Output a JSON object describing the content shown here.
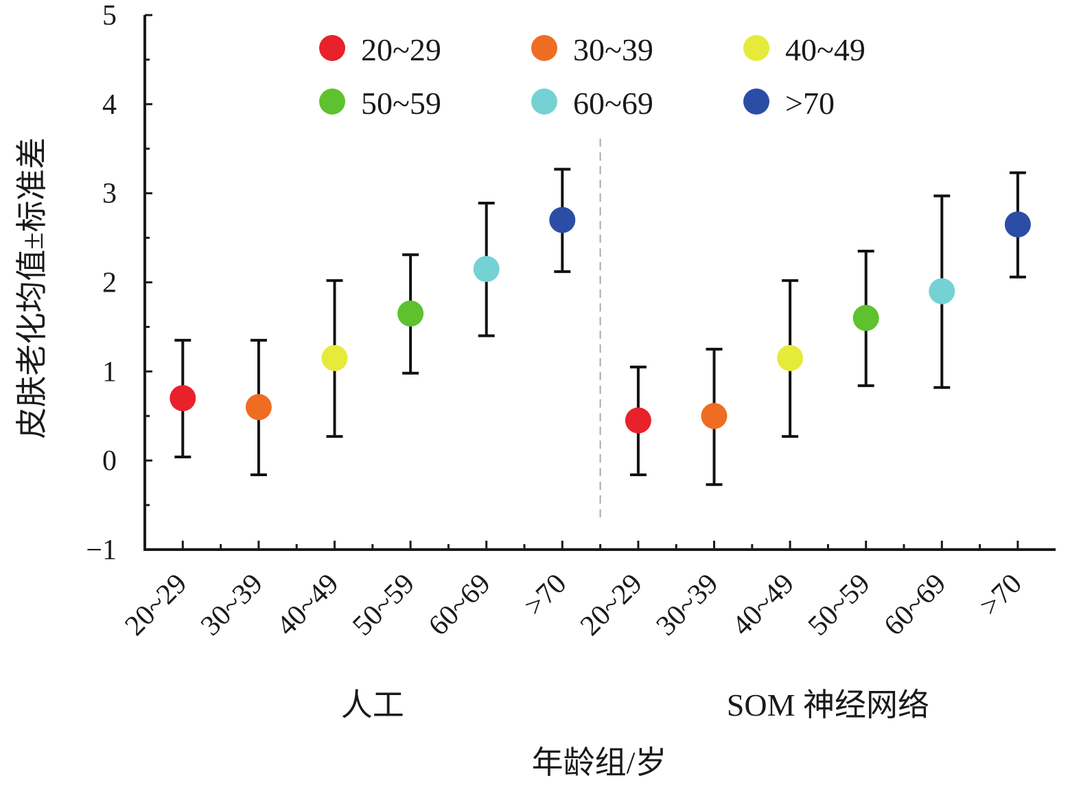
{
  "chart_data": {
    "type": "scatter",
    "xlabel": "年龄组/岁",
    "ylabel": "皮肤老化均值±标准差",
    "ylim": [
      -1,
      5
    ],
    "yticks": [
      "−1",
      "0",
      "1",
      "2",
      "3",
      "4",
      "5"
    ],
    "groups": [
      {
        "label": "人工",
        "categories": [
          "20~29",
          "30~39",
          "40~49",
          "50~59",
          "60~69",
          ">70"
        ]
      },
      {
        "label": "SOM 神经网络",
        "categories": [
          "20~29",
          "30~39",
          "40~49",
          "50~59",
          "60~69",
          ">70"
        ]
      }
    ],
    "legend": {
      "placement": "top",
      "entries": [
        {
          "name": "20~29",
          "color": "#e8212b"
        },
        {
          "name": "30~39",
          "color": "#ef6c23"
        },
        {
          "name": "40~49",
          "color": "#e6ea3a"
        },
        {
          "name": "50~59",
          "color": "#5ec12e"
        },
        {
          "name": "60~69",
          "color": "#74d2d4"
        },
        {
          "name": ">70",
          "color": "#2c4da6"
        }
      ]
    },
    "series": [
      {
        "name": "20~29",
        "color": "#e8212b",
        "mean": [
          0.7,
          0.45
        ],
        "lower": [
          0.04,
          -0.16
        ],
        "upper": [
          1.35,
          1.05
        ]
      },
      {
        "name": "30~39",
        "color": "#ef6c23",
        "mean": [
          0.6,
          0.5
        ],
        "lower": [
          -0.16,
          -0.27
        ],
        "upper": [
          1.35,
          1.25
        ]
      },
      {
        "name": "40~49",
        "color": "#e6ea3a",
        "mean": [
          1.15,
          1.15
        ],
        "lower": [
          0.27,
          0.27
        ],
        "upper": [
          2.02,
          2.02
        ]
      },
      {
        "name": "50~59",
        "color": "#5ec12e",
        "mean": [
          1.65,
          1.6
        ],
        "lower": [
          0.98,
          0.84
        ],
        "upper": [
          2.31,
          2.35
        ]
      },
      {
        "name": "60~69",
        "color": "#74d2d4",
        "mean": [
          2.15,
          1.9
        ],
        "lower": [
          1.4,
          0.82
        ],
        "upper": [
          2.89,
          2.97
        ]
      },
      {
        "name": ">70",
        "color": "#2c4da6",
        "mean": [
          2.7,
          2.65
        ],
        "lower": [
          2.12,
          2.06
        ],
        "upper": [
          3.27,
          3.23
        ]
      }
    ]
  }
}
